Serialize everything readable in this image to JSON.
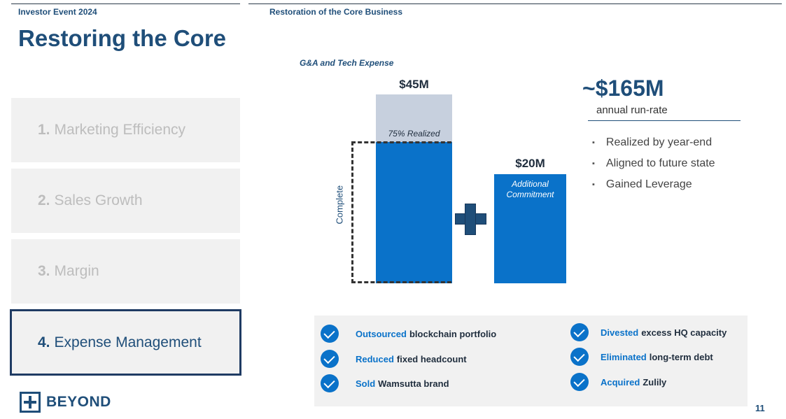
{
  "header": {
    "left_label": "Investor Event 2024",
    "right_label": "Restoration of the Core Business"
  },
  "title": "Restoring the Core",
  "menu": [
    {
      "num": "1.",
      "label": "Marketing Efficiency",
      "active": false
    },
    {
      "num": "2.",
      "label": "Sales Growth",
      "active": false
    },
    {
      "num": "3.",
      "label": "Margin",
      "active": false
    },
    {
      "num": "4.",
      "label": "Expense Management",
      "active": true
    }
  ],
  "logo": {
    "text": "BEYOND"
  },
  "chart_data": {
    "type": "bar",
    "title": "G&A and Tech Expense",
    "categories": [
      "",
      ""
    ],
    "values_labels": [
      "$45M",
      "$20M"
    ],
    "values": [
      45,
      20
    ],
    "realized_fraction": 0.75,
    "realized_label": "75% Realized",
    "complete_label": "Complete",
    "additional_label": "Additional Commitment",
    "colors": {
      "realized": "#0a72c9",
      "remaining": "#c7d0de",
      "plus": "#1f4e79"
    }
  },
  "summary": {
    "headline": "~$165M",
    "subhead": "annual run-rate",
    "bullets": [
      "Realized by year-end",
      "Aligned to future state",
      "Gained Leverage"
    ]
  },
  "actions": [
    {
      "verb": "Outsourced",
      "rest": "blockchain portfolio"
    },
    {
      "verb": "Reduced",
      "rest": "fixed headcount"
    },
    {
      "verb": "Sold",
      "rest": "Wamsutta brand"
    },
    {
      "verb": "Divested",
      "rest": "excess HQ capacity"
    },
    {
      "verb": "Eliminated",
      "rest": "long-term debt"
    },
    {
      "verb": "Acquired",
      "rest": "Zulily"
    }
  ],
  "page_number": "11",
  "colors": {
    "brand": "#1f4e79",
    "accent": "#0a72c9",
    "card_bg": "#f1f1f1"
  }
}
